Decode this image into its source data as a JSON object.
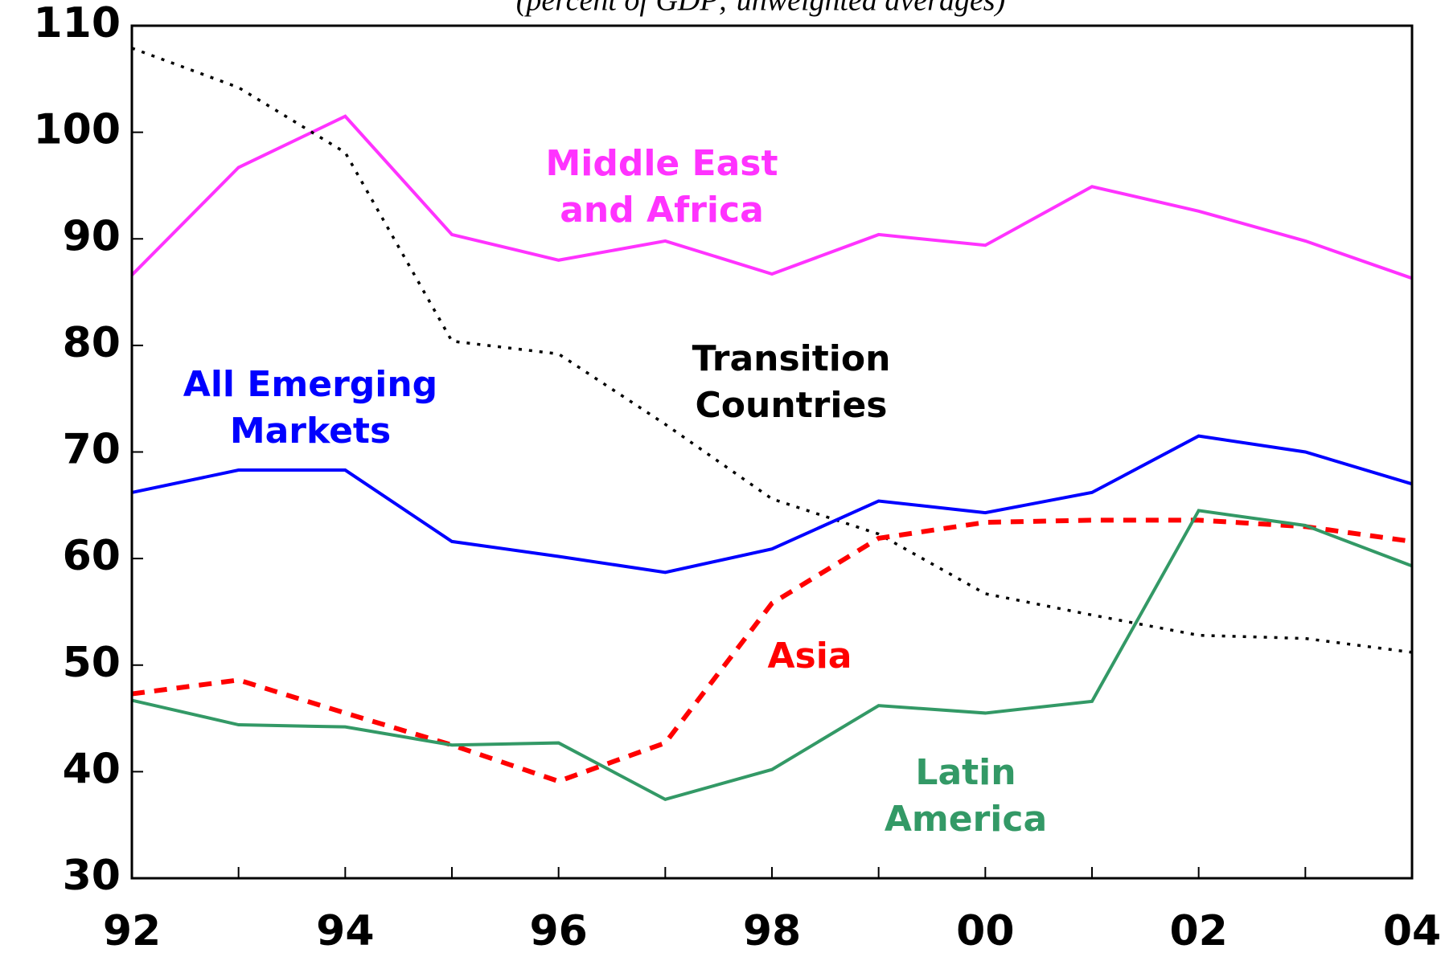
{
  "chart_data": {
    "type": "line",
    "subtitle": "(percent of GDP; unweighted averages)",
    "categories": [
      "92",
      null,
      "94",
      null,
      "96",
      null,
      "98",
      null,
      "00",
      null,
      "02",
      null,
      "04"
    ],
    "ylim": [
      30,
      110
    ],
    "yticks": [
      30,
      40,
      50,
      60,
      70,
      80,
      90,
      100,
      110
    ],
    "series": [
      {
        "name": "Middle East and Africa",
        "color": "#ff33ff",
        "dash": "solid",
        "values": [
          86.6,
          96.7,
          101.5,
          90.4,
          88.0,
          89.8,
          86.7,
          90.4,
          89.4,
          94.9,
          92.6,
          89.8,
          86.3
        ]
      },
      {
        "name": "Transition Countries",
        "color": "#000000",
        "dash": "dotted",
        "values": [
          107.9,
          104.2,
          98.1,
          80.4,
          79.2,
          72.6,
          65.6,
          62.3,
          56.7,
          54.7,
          52.8,
          52.5,
          51.2
        ]
      },
      {
        "name": "All Emerging Markets",
        "color": "#0000ff",
        "dash": "solid",
        "values": [
          66.2,
          68.3,
          68.3,
          61.6,
          60.2,
          58.7,
          60.9,
          65.4,
          64.3,
          66.2,
          71.5,
          70.0,
          67.0
        ]
      },
      {
        "name": "Asia",
        "color": "#ff0000",
        "dash": "dashed",
        "values": [
          47.3,
          48.6,
          45.5,
          42.5,
          39.1,
          42.7,
          55.8,
          61.9,
          63.4,
          63.6,
          63.6,
          63.0,
          61.6
        ]
      },
      {
        "name": "Latin America",
        "color": "#339966",
        "dash": "solid",
        "values": [
          46.7,
          44.4,
          44.2,
          42.5,
          42.7,
          37.4,
          40.2,
          46.2,
          45.5,
          46.6,
          64.5,
          63.1,
          59.3
        ]
      }
    ]
  }
}
